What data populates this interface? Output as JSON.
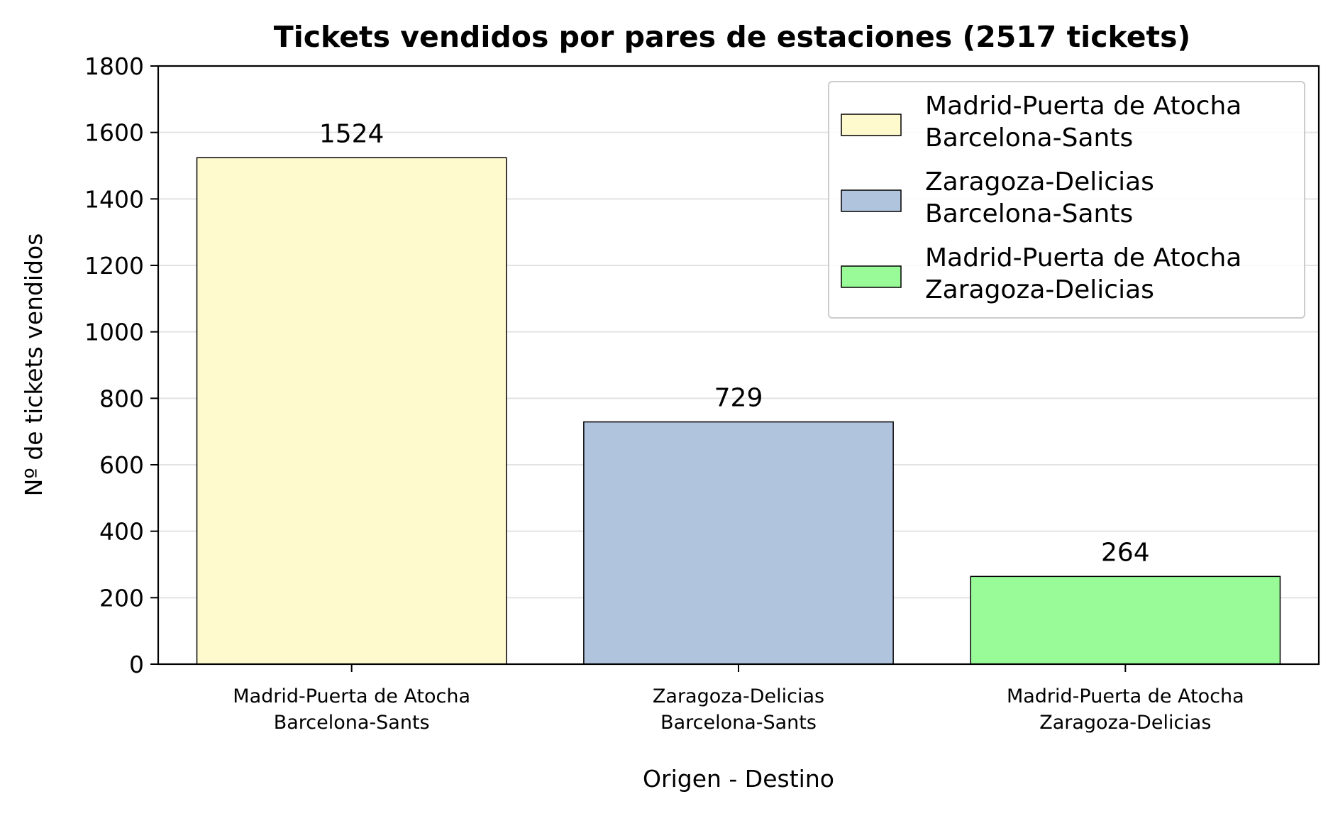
{
  "chart_data": {
    "type": "bar",
    "title": "Tickets vendidos por pares de estaciones (2517 tickets)",
    "xlabel": "Origen - Destino",
    "ylabel": "Nº de tickets vendidos",
    "ylim": [
      0,
      1800
    ],
    "yticks": [
      "0",
      "200",
      "400",
      "600",
      "800",
      "1000",
      "1200",
      "1400",
      "1600",
      "1800"
    ],
    "grid": "horizontal",
    "legend_position": "top-right",
    "categories": [
      [
        "Madrid-Puerta de Atocha",
        "Barcelona-Sants"
      ],
      [
        "Zaragoza-Delicias",
        "Barcelona-Sants"
      ],
      [
        "Madrid-Puerta de Atocha",
        "Zaragoza-Delicias"
      ]
    ],
    "values": [
      1524,
      729,
      264
    ],
    "data_labels": [
      "1524",
      "729",
      "264"
    ],
    "colors": [
      "#fffacd",
      "#b0c4de",
      "#98fb98"
    ],
    "legend": [
      [
        "Madrid-Puerta de Atocha",
        "Barcelona-Sants"
      ],
      [
        "Zaragoza-Delicias",
        "Barcelona-Sants"
      ],
      [
        "Madrid-Puerta de Atocha",
        "Zaragoza-Delicias"
      ]
    ]
  }
}
